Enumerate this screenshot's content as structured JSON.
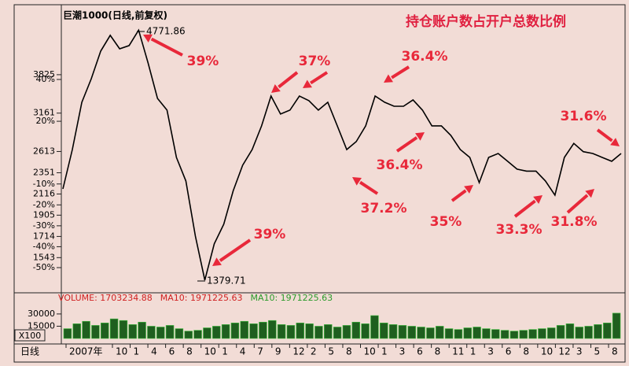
{
  "chart_data": [
    {
      "type": "line",
      "title": "巨潮1000(日线,前复权)",
      "subtitle": "持仓账户数占开户总数比例",
      "log_scale": true,
      "color": "#000000",
      "values": [
        2170,
        2638,
        3336,
        3750,
        4300,
        4650,
        4350,
        4420,
        4771.86,
        4056,
        3401,
        3208,
        2537,
        2257,
        1717,
        1379.71,
        1652,
        1821,
        2150,
        2440,
        2638,
        2967,
        3441,
        3146,
        3208,
        3441,
        3362,
        3208,
        3336,
        2967,
        2638,
        2744,
        2967,
        3441,
        3336,
        3271,
        3271,
        3375,
        3208,
        2967,
        2967,
        2830,
        2638,
        2537,
        2239,
        2537,
        2587,
        2489,
        2394,
        2370,
        2370,
        2257,
        2104,
        2537,
        2720,
        2610,
        2587,
        2537,
        2489,
        2587
      ],
      "ylim": [
        1306,
        5371
      ],
      "yticks": [
        3825,
        3161,
        2613,
        2351,
        2116,
        1905,
        1714,
        1543
      ],
      "y2lim": [
        -61.3,
        75
      ],
      "y2ticks": [
        {
          "value": 40,
          "label": "40%"
        },
        {
          "value": 20,
          "label": "20%"
        },
        {
          "value": -10,
          "label": "-10%"
        },
        {
          "value": -20,
          "label": "-20%"
        },
        {
          "value": -30,
          "label": "-30%"
        },
        {
          "value": -40,
          "label": "-40%"
        },
        {
          "value": -50,
          "label": "-50%"
        }
      ],
      "annotations": [
        "4771.86",
        "1379.71",
        "39%",
        "39%",
        "37%",
        "36.4%",
        "36.4%",
        "37.2%",
        "35%",
        "33.3%",
        "31.8%",
        "31.6%"
      ],
      "annotation_color": "#e8283a"
    },
    {
      "type": "bar",
      "legend": [
        {
          "text": "VOLUME: 1703234.88",
          "color": "#d02020"
        },
        {
          "text": "MA10: 1971225.63",
          "color": "#d02020"
        },
        {
          "text": "MA10: 1971225.63",
          "color": "#2a9a2a"
        }
      ],
      "color": "#1f5f1f",
      "values": [
        12000,
        18000,
        21000,
        16000,
        19000,
        24000,
        22000,
        17000,
        20000,
        15000,
        14000,
        16000,
        12000,
        9000,
        10000,
        13000,
        15000,
        17000,
        19000,
        21000,
        18000,
        20000,
        22000,
        17000,
        16000,
        19000,
        18000,
        15000,
        17000,
        14000,
        16000,
        20000,
        18000,
        28000,
        19000,
        17000,
        16000,
        15000,
        14000,
        13000,
        15000,
        12000,
        11000,
        13000,
        14000,
        12000,
        11000,
        10000,
        9000,
        10000,
        11000,
        12000,
        13000,
        16000,
        18000,
        14000,
        15000,
        17000,
        19000,
        31000
      ],
      "ylim": [
        0,
        54000
      ],
      "yticks": [
        30000,
        15000
      ],
      "scale_note": "X100",
      "xlabel": "日线",
      "xtick_labels": [
        "2007年",
        "10",
        "1",
        "4",
        "6",
        "8",
        "10",
        "1",
        "4",
        "7",
        "9",
        "12",
        "2",
        "5",
        "8",
        "10",
        "1",
        "3",
        "6",
        "8",
        "11",
        "1",
        "3",
        "6",
        "8",
        "10",
        "12",
        "3",
        "5",
        "8"
      ]
    }
  ]
}
